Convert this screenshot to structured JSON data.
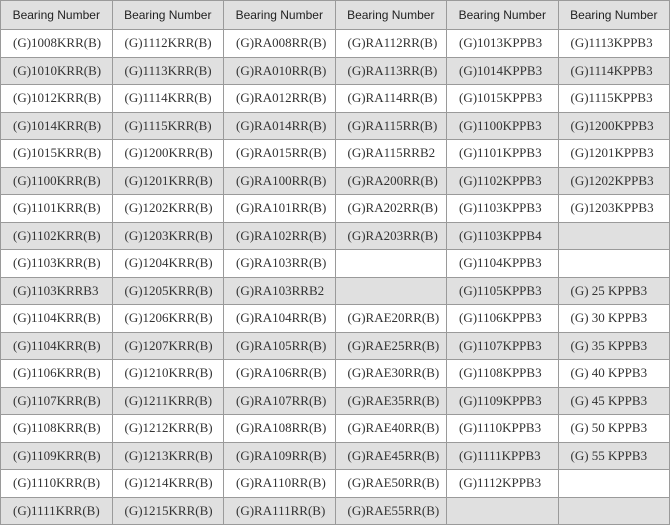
{
  "headers": [
    "Bearing Number",
    "Bearing Number",
    "Bearing Number",
    "Bearing Number",
    "Bearing Number",
    "Bearing Number"
  ],
  "rows": [
    [
      "(G)1008KRR(B)",
      "(G)1112KRR(B)",
      "(G)RA008RR(B)",
      "(G)RA112RR(B)",
      "(G)1013KPPB3",
      "(G)1113KPPB3"
    ],
    [
      "(G)1010KRR(B)",
      "(G)1113KRR(B)",
      "(G)RA010RR(B)",
      "(G)RA113RR(B)",
      "(G)1014KPPB3",
      "(G)1114KPPB3"
    ],
    [
      "(G)1012KRR(B)",
      "(G)1114KRR(B)",
      "(G)RA012RR(B)",
      "(G)RA114RR(B)",
      "(G)1015KPPB3",
      "(G)1115KPPB3"
    ],
    [
      "(G)1014KRR(B)",
      "(G)1115KRR(B)",
      "(G)RA014RR(B)",
      "(G)RA115RR(B)",
      "(G)1100KPPB3",
      "(G)1200KPPB3"
    ],
    [
      "(G)1015KRR(B)",
      "(G)1200KRR(B)",
      "(G)RA015RR(B)",
      "(G)RA115RRB2",
      "(G)1101KPPB3",
      "(G)1201KPPB3"
    ],
    [
      "(G)1100KRR(B)",
      "(G)1201KRR(B)",
      "(G)RA100RR(B)",
      "(G)RA200RR(B)",
      "(G)1102KPPB3",
      "(G)1202KPPB3"
    ],
    [
      "(G)1101KRR(B)",
      "(G)1202KRR(B)",
      "(G)RA101RR(B)",
      "(G)RA202RR(B)",
      "(G)1103KPPB3",
      "(G)1203KPPB3"
    ],
    [
      "(G)1102KRR(B)",
      "(G)1203KRR(B)",
      "(G)RA102RR(B)",
      "(G)RA203RR(B)",
      "(G)1103KPPB4",
      ""
    ],
    [
      "(G)1103KRR(B)",
      "(G)1204KRR(B)",
      "(G)RA103RR(B)",
      "",
      "(G)1104KPPB3",
      ""
    ],
    [
      "(G)1103KRRB3",
      "(G)1205KRR(B)",
      "(G)RA103RRB2",
      "",
      "(G)1105KPPB3",
      "(G) 25 KPPB3"
    ],
    [
      "(G)1104KRR(B)",
      "(G)1206KRR(B)",
      "(G)RA104RR(B)",
      "(G)RAE20RR(B)",
      "(G)1106KPPB3",
      "(G) 30 KPPB3"
    ],
    [
      "(G)1104KRR(B)",
      "(G)1207KRR(B)",
      "(G)RA105RR(B)",
      "(G)RAE25RR(B)",
      "(G)1107KPPB3",
      "(G) 35 KPPB3"
    ],
    [
      "(G)1106KRR(B)",
      "(G)1210KRR(B)",
      "(G)RA106RR(B)",
      "(G)RAE30RR(B)",
      "(G)1108KPPB3",
      "(G) 40 KPPB3"
    ],
    [
      "(G)1107KRR(B)",
      "(G)1211KRR(B)",
      "(G)RA107RR(B)",
      "(G)RAE35RR(B)",
      "(G)1109KPPB3",
      "(G) 45 KPPB3"
    ],
    [
      "(G)1108KRR(B)",
      "(G)1212KRR(B)",
      "(G)RA108RR(B)",
      "(G)RAE40RR(B)",
      "(G)1110KPPB3",
      "(G) 50 KPPB3"
    ],
    [
      "(G)1109KRR(B)",
      "(G)1213KRR(B)",
      "(G)RA109RR(B)",
      "(G)RAE45RR(B)",
      "(G)1111KPPB3",
      "(G) 55 KPPB3"
    ],
    [
      "(G)1110KRR(B)",
      "(G)1214KRR(B)",
      "(G)RA110RR(B)",
      "(G)RAE50RR(B)",
      "(G)1112KPPB3",
      ""
    ],
    [
      "(G)1111KRR(B)",
      "(G)1215KRR(B)",
      "(G)RA111RR(B)",
      "(G)RAE55RR(B)",
      "",
      ""
    ]
  ],
  "colors": {
    "stripe": "#e0e0e0",
    "border": "#9a9a9a",
    "header_bg": "#e0e0e0"
  }
}
